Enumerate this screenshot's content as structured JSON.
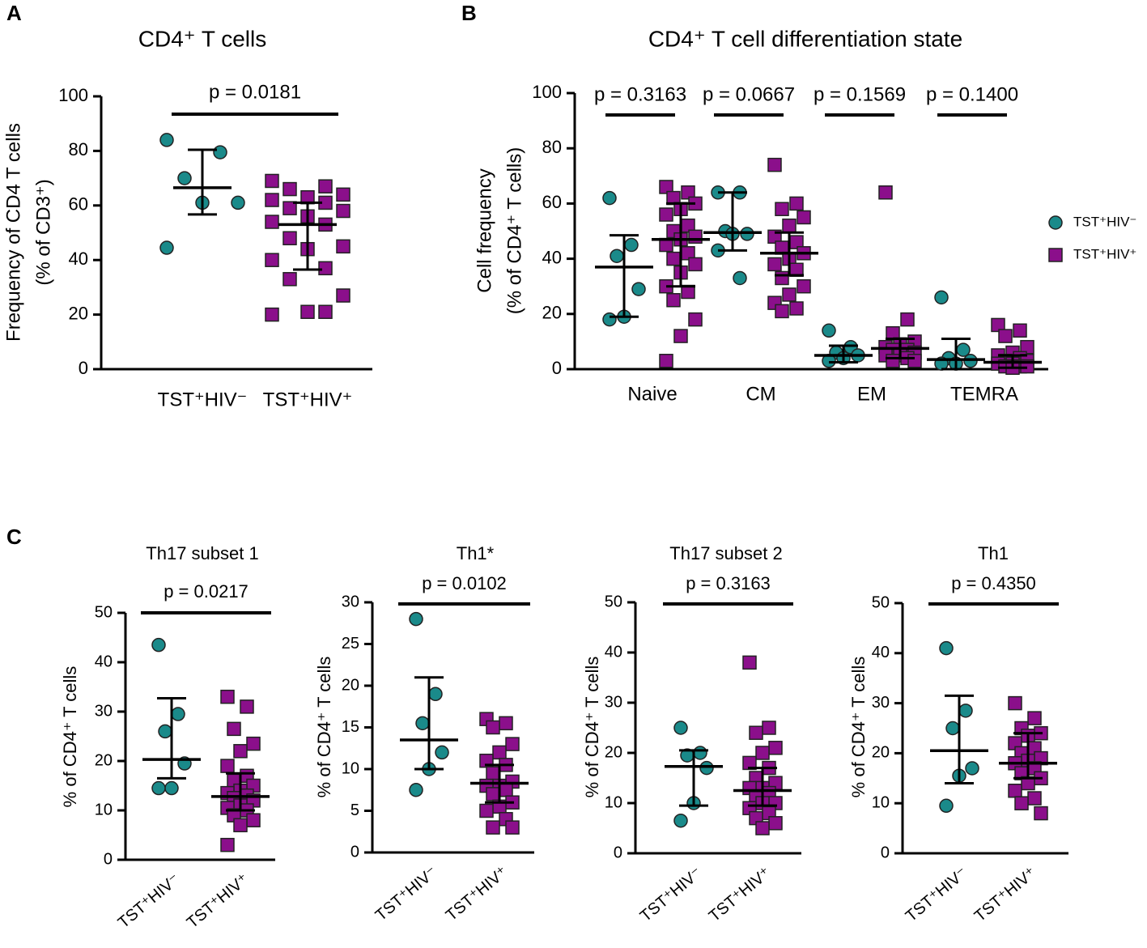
{
  "panel_labels": [
    "A",
    "B",
    "C"
  ],
  "chart_data": [
    {
      "type": "dot",
      "title": "CD4⁺ T cells",
      "ylabel": [
        "Frequency of CD4 T cells",
        "(% of CD3⁺)"
      ],
      "categories": [
        "TST⁺HIV⁻",
        "TST⁺HIV⁺"
      ],
      "ylim": [
        0,
        100
      ],
      "yticks": [
        0,
        20,
        40,
        60,
        80,
        100
      ],
      "annotations": [
        "p = 0.0181"
      ],
      "groups": [
        {
          "color": "#1a8a8a",
          "marker": "circle",
          "points": [
            84,
            79.5,
            70,
            61,
            61,
            44.5
          ],
          "mean": 66.5,
          "low": 56.7,
          "high": 80.4
        },
        {
          "color": "#8b0f8b",
          "marker": "square",
          "points": [
            69,
            67,
            66,
            64,
            63,
            62,
            61,
            59,
            58,
            56,
            54,
            53,
            48,
            45,
            44,
            40,
            37,
            33,
            27,
            21,
            20,
            21
          ],
          "mean": 53,
          "low": 36.5,
          "high": 61
        }
      ]
    },
    {
      "type": "dot",
      "title": "CD4⁺ T cell differentiation state",
      "ylabel": [
        "Cell frequency",
        "(% of CD4⁺ T cells)"
      ],
      "categories": [
        "Naive",
        "CM",
        "EM",
        "TEMRA"
      ],
      "ylim": [
        0,
        100
      ],
      "yticks": [
        0,
        20,
        40,
        60,
        80,
        100
      ],
      "annotations": [
        "p = 0.3163",
        "p = 0.0667",
        "p = 0.1569",
        "p = 0.1400"
      ],
      "legend": "right",
      "series": [
        {
          "name": "TST⁺HIV⁻",
          "color": "#1a8a8a",
          "marker": "circle",
          "groups": [
            {
              "points": [
                62,
                45,
                41,
                29,
                19,
                18
              ],
              "mean": 37,
              "low": 19,
              "high": 48.5
            },
            {
              "points": [
                64,
                64,
                50,
                49,
                49,
                43,
                33
              ],
              "mean": 49.5,
              "low": 43,
              "high": 64
            },
            {
              "points": [
                14,
                8,
                6,
                5,
                4,
                3
              ],
              "mean": 5,
              "low": 2.5,
              "high": 8.5
            },
            {
              "points": [
                26,
                7,
                4,
                3,
                2,
                2
              ],
              "mean": 3.5,
              "low": 0,
              "high": 11
            }
          ]
        },
        {
          "name": "TST⁺HIV⁺",
          "color": "#8b0f8b",
          "marker": "square",
          "groups": [
            {
              "points": [
                66,
                64,
                62,
                60,
                58,
                56,
                52,
                50,
                48,
                47,
                45,
                42,
                40,
                38,
                35,
                30,
                28,
                25,
                18,
                12,
                3
              ],
              "mean": 47,
              "low": 30,
              "high": 60
            },
            {
              "points": [
                74,
                60,
                58,
                55,
                52,
                48,
                46,
                44,
                42,
                40,
                38,
                36,
                33,
                30,
                27,
                24,
                22,
                21
              ],
              "mean": 42,
              "low": 34,
              "high": 49.5
            },
            {
              "points": [
                64,
                18,
                13,
                10,
                9,
                8,
                7,
                7,
                6,
                5,
                5,
                4,
                3,
                3
              ],
              "mean": 7.5,
              "low": 4,
              "high": 11
            },
            {
              "points": [
                16,
                14,
                12,
                8,
                6,
                5,
                4,
                3,
                3,
                2,
                2,
                1,
                1,
                1,
                0.5
              ],
              "mean": 2.5,
              "low": 0.5,
              "high": 5
            }
          ]
        }
      ]
    },
    {
      "type": "dot",
      "title": "Th17 subset 1",
      "ylabel": [
        "% of CD4⁺ T cells"
      ],
      "categories": [
        "TST⁺HIV⁻",
        "TST⁺HIV⁺"
      ],
      "ylim": [
        0,
        50
      ],
      "yticks": [
        0,
        10,
        20,
        30,
        40,
        50
      ],
      "annotations": [
        "p = 0.0217"
      ],
      "groups": [
        {
          "color": "#1a8a8a",
          "marker": "circle",
          "points": [
            43.5,
            29.5,
            26,
            19.5,
            14.5,
            14.5
          ],
          "mean": 20.3,
          "low": 16.5,
          "high": 32.7
        },
        {
          "color": "#8b0f8b",
          "marker": "square",
          "points": [
            33,
            31,
            26.5,
            23.5,
            22,
            19,
            17,
            16,
            15,
            14,
            13.5,
            13,
            12.5,
            12,
            11,
            10.5,
            10,
            9,
            8,
            7,
            3
          ],
          "mean": 12.8,
          "low": 10,
          "high": 17.5
        }
      ]
    },
    {
      "type": "dot",
      "title": "Th1*",
      "ylabel": [
        "% of CD4⁺ T cells"
      ],
      "categories": [
        "TST⁺HIV⁻",
        "TST⁺HIV⁺"
      ],
      "ylim": [
        0,
        30
      ],
      "yticks": [
        0,
        5,
        10,
        15,
        20,
        25,
        30
      ],
      "annotations": [
        "p = 0.0102"
      ],
      "groups": [
        {
          "color": "#1a8a8a",
          "marker": "circle",
          "points": [
            28,
            19,
            15.5,
            12,
            10,
            7.5
          ],
          "mean": 13.5,
          "low": 10,
          "high": 21
        },
        {
          "color": "#8b0f8b",
          "marker": "square",
          "points": [
            16,
            15.5,
            15,
            13,
            12,
            11,
            10.5,
            9.5,
            8.5,
            8,
            8,
            7.5,
            7,
            6,
            5.5,
            5,
            4,
            3,
            3
          ],
          "mean": 8.3,
          "low": 6,
          "high": 10.5
        }
      ]
    },
    {
      "type": "dot",
      "title": "Th17 subset 2",
      "ylabel": [
        "% of CD4⁺ T cells"
      ],
      "categories": [
        "TST⁺HIV⁻",
        "TST⁺HIV⁺"
      ],
      "ylim": [
        0,
        50
      ],
      "yticks": [
        0,
        10,
        20,
        30,
        40,
        50
      ],
      "annotations": [
        "p = 0.3163"
      ],
      "groups": [
        {
          "color": "#1a8a8a",
          "marker": "circle",
          "points": [
            25,
            20,
            19.5,
            17,
            10,
            6.5
          ],
          "mean": 17.3,
          "low": 9.5,
          "high": 20.5
        },
        {
          "color": "#8b0f8b",
          "marker": "square",
          "points": [
            38,
            25,
            24,
            21,
            20,
            18,
            17,
            15,
            14,
            13,
            13,
            12,
            11,
            10,
            10,
            9,
            8,
            7,
            6,
            5
          ],
          "mean": 12.5,
          "low": 9.5,
          "high": 17
        }
      ]
    },
    {
      "type": "dot",
      "title": "Th1",
      "ylabel": [
        "% of CD4⁺ T cells"
      ],
      "categories": [
        "TST⁺HIV⁻",
        "TST⁺HIV⁺"
      ],
      "ylim": [
        0,
        50
      ],
      "yticks": [
        0,
        10,
        20,
        30,
        40,
        50
      ],
      "annotations": [
        "p = 0.4350"
      ],
      "groups": [
        {
          "color": "#1a8a8a",
          "marker": "circle",
          "points": [
            41,
            28.5,
            25,
            17,
            15.5,
            9.5
          ],
          "mean": 20.5,
          "low": 14,
          "high": 31.5
        },
        {
          "color": "#8b0f8b",
          "marker": "square",
          "points": [
            30,
            27,
            25,
            24,
            23.5,
            22,
            21,
            20,
            19,
            18.5,
            18,
            17,
            16,
            15,
            14,
            12.5,
            11,
            10,
            8
          ],
          "mean": 18,
          "low": 15,
          "high": 24
        }
      ]
    }
  ]
}
